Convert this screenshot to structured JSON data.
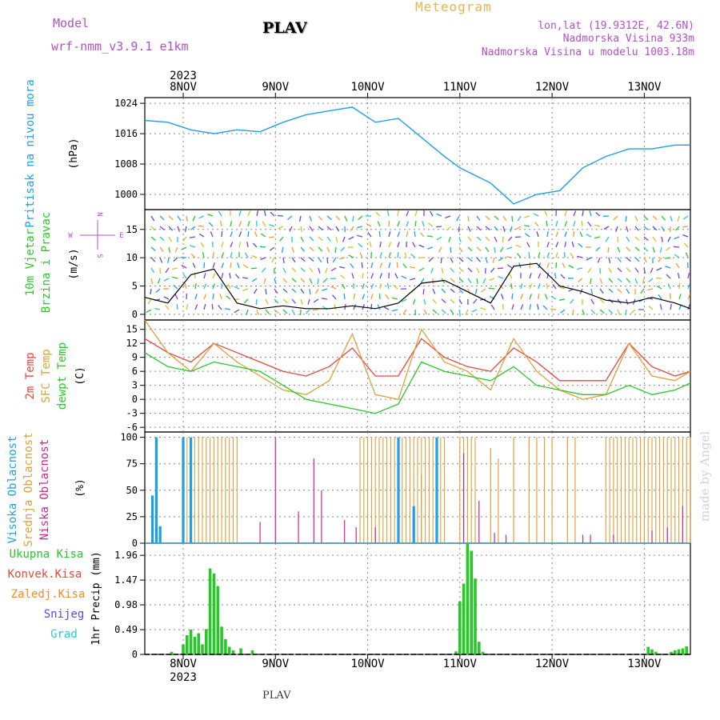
{
  "header": {
    "model_label": "Model",
    "model_name": "wrf-nmm_v3.9.1  e1km",
    "station_title": "PLAV",
    "meteogram_label": "Meteogram",
    "lonlat": "lon,lat (19.9312E, 42.6N)",
    "elevation": "Nadmorska Visina 933m",
    "model_elevation": "Nadmorska Visina u modelu 1003.18m"
  },
  "watermark": "made by Angel",
  "footer_station": "PLAV",
  "colors": {
    "pressure": "#1ea0e6",
    "temp2m": "#e6463c",
    "sfc_temp": "#dca03c",
    "dewpoint": "#28c828",
    "high_cloud": "#1ea0e6",
    "mid_cloud": "#dca03c",
    "low_cloud": "#c8288c",
    "total_precip": "#28c828",
    "conv_precip": "#e6463c",
    "frozen_precip": "#f08c28",
    "snow": "#5050dc",
    "graupel": "#28c8c8",
    "magenta_text": "#b450c8",
    "wind_label": "#28c828",
    "wind_speed_line": "#000000",
    "gust": "#e6463c"
  },
  "chart_data": {
    "type": "meteogram",
    "x_range": [
      "2023-11-07 14:00",
      "2023-11-13 12:00"
    ],
    "year_label": "2023",
    "day_labels": [
      "8NOV",
      "9NOV",
      "10NOV",
      "11NOV",
      "12NOV",
      "13NOV"
    ],
    "days": [
      "2023-11-08",
      "2023-11-09",
      "2023-11-10",
      "2023-11-11",
      "2023-11-12",
      "2023-11-13"
    ],
    "panels": [
      {
        "id": "pressure",
        "ylabel_title": "Pritisak na nivou mora",
        "unit": "(hPa)",
        "ylim": [
          996,
          1025.5
        ],
        "ticks": [
          "1000",
          "1008",
          "1016",
          "1024"
        ],
        "series": [
          {
            "name": "Pritisak na nivou mora",
            "x": [
              "2023-11-07 14:00",
              "2023-11-07 20:00",
              "2023-11-08 02:00",
              "2023-11-08 08:00",
              "2023-11-08 14:00",
              "2023-11-08 20:00",
              "2023-11-09 02:00",
              "2023-11-09 08:00",
              "2023-11-09 14:00",
              "2023-11-09 20:00",
              "2023-11-10 02:00",
              "2023-11-10 08:00",
              "2023-11-10 14:00",
              "2023-11-10 20:00",
              "2023-11-11 00:00",
              "2023-11-11 04:00",
              "2023-11-11 08:00",
              "2023-11-11 14:00",
              "2023-11-11 20:00",
              "2023-11-12 02:00",
              "2023-11-12 08:00",
              "2023-11-12 14:00",
              "2023-11-12 20:00",
              "2023-11-13 02:00",
              "2023-11-13 08:00",
              "2023-11-13 12:00"
            ],
            "y": [
              1019.5,
              1019,
              1017,
              1016,
              1017,
              1016.5,
              1019,
              1021,
              1022,
              1023,
              1019,
              1020,
              1015,
              1010,
              1007,
              1005,
              1003,
              997.5,
              1000,
              1001,
              1007,
              1010,
              1012,
              1012,
              1013,
              1013
            ]
          }
        ]
      },
      {
        "id": "wind",
        "ylabel_title": "10m Vjetar",
        "ylabel_title2": "Brzina i Pravac",
        "unit": "(m/s)",
        "ylim": [
          -1,
          18.5
        ],
        "ticks": [
          "0",
          "5",
          "10",
          "15"
        ],
        "compass": [
          "N",
          "E",
          "S",
          "W"
        ],
        "series": [
          {
            "name": "Brzina vjetra",
            "x": [
              "2023-11-07 14:00",
              "2023-11-07 20:00",
              "2023-11-08 02:00",
              "2023-11-08 08:00",
              "2023-11-08 14:00",
              "2023-11-08 20:00",
              "2023-11-09 02:00",
              "2023-11-09 08:00",
              "2023-11-09 14:00",
              "2023-11-09 20:00",
              "2023-11-10 02:00",
              "2023-11-10 08:00",
              "2023-11-10 14:00",
              "2023-11-10 20:00",
              "2023-11-11 02:00",
              "2023-11-11 08:00",
              "2023-11-11 14:00",
              "2023-11-11 20:00",
              "2023-11-12 02:00",
              "2023-11-12 08:00",
              "2023-11-12 14:00",
              "2023-11-12 20:00",
              "2023-11-13 02:00",
              "2023-11-13 08:00",
              "2023-11-13 12:00"
            ],
            "y": [
              3,
              2,
              7,
              8,
              2,
              1,
              1.5,
              1,
              1,
              1.5,
              1,
              2,
              5.5,
              6,
              4,
              2,
              8.5,
              9,
              5,
              4,
              2.5,
              2,
              3,
              2,
              1
            ]
          }
        ]
      },
      {
        "id": "temperature",
        "ylabel_title": "2m Temp",
        "ylabel_title2": "SFC Temp",
        "ylabel_title3": "dewpt Temp",
        "unit": "(C)",
        "ylim": [
          -7,
          17
        ],
        "ticks": [
          "-6",
          "-3",
          "0",
          "3",
          "6",
          "9",
          "12",
          "15"
        ],
        "x": [
          "2023-11-07 14:00",
          "2023-11-07 20:00",
          "2023-11-08 02:00",
          "2023-11-08 08:00",
          "2023-11-08 14:00",
          "2023-11-08 20:00",
          "2023-11-09 02:00",
          "2023-11-09 08:00",
          "2023-11-09 14:00",
          "2023-11-09 20:00",
          "2023-11-10 02:00",
          "2023-11-10 08:00",
          "2023-11-10 14:00",
          "2023-11-10 20:00",
          "2023-11-11 02:00",
          "2023-11-11 08:00",
          "2023-11-11 14:00",
          "2023-11-11 20:00",
          "2023-11-12 02:00",
          "2023-11-12 08:00",
          "2023-11-12 14:00",
          "2023-11-12 20:00",
          "2023-11-13 02:00",
          "2023-11-13 08:00",
          "2023-11-13 12:00"
        ],
        "series": [
          {
            "name": "2m Temp",
            "values": [
              13,
              10,
              8,
              12,
              10,
              8,
              6,
              5,
              7,
              11,
              5,
              5,
              13,
              9,
              7,
              6,
              11,
              8,
              4,
              4,
              4,
              12,
              7,
              5,
              6
            ]
          },
          {
            "name": "SFC Temp",
            "values": [
              17,
              10,
              6,
              12,
              8,
              5,
              2,
              1,
              4,
              14,
              1,
              0,
              15,
              8,
              6,
              2,
              13,
              6,
              2,
              0,
              1,
              12,
              5,
              4,
              6
            ]
          },
          {
            "name": "dewpt Temp",
            "values": [
              10,
              7,
              6,
              8,
              7,
              6,
              3,
              0,
              -1,
              -2,
              -3,
              -1,
              8,
              6,
              5,
              4,
              7,
              3,
              2,
              1,
              1,
              3,
              1,
              2,
              3.5
            ]
          }
        ]
      },
      {
        "id": "clouds",
        "ylabel_title": "Visoka Oblacnost",
        "ylabel_title2": "Srednja Oblacnost",
        "ylabel_title3": "Niska Oblacnost",
        "unit": "(%)",
        "ylim": [
          0,
          105
        ],
        "ticks": [
          "0",
          "25",
          "50",
          "75",
          "100"
        ],
        "series": [
          {
            "name": "Visoka Oblacnost",
            "bars": [
              [
                "2023-11-07 16:00",
                45
              ],
              [
                "2023-11-07 17:00",
                100
              ],
              [
                "2023-11-07 18:00",
                16
              ],
              [
                "2023-11-08 00:00",
                100
              ],
              [
                "2023-11-08 02:00",
                100
              ],
              [
                "2023-11-10 08:00",
                100
              ],
              [
                "2023-11-10 12:00",
                35
              ],
              [
                "2023-11-10 18:00",
                100
              ]
            ]
          },
          {
            "name": "Srednja Oblacnost",
            "ranges": [
              [
                "2023-11-08 00:00",
                "2023-11-08 14:00",
                100
              ],
              [
                "2023-11-09 22:00",
                "2023-11-10 20:00",
                100
              ],
              [
                "2023-11-11 00:00",
                "2023-11-11 04:00",
                100
              ],
              [
                "2023-11-12 14:00",
                "2023-11-13 12:00",
                100
              ]
            ],
            "bars": [
              [
                "2023-11-10 14:00",
                65
              ],
              [
                "2023-11-11 08:00",
                90
              ],
              [
                "2023-11-11 10:00",
                80
              ],
              [
                "2023-11-11 14:00",
                100
              ],
              [
                "2023-11-11 18:00",
                100
              ],
              [
                "2023-11-11 20:00",
                100
              ],
              [
                "2023-11-11 22:00",
                100
              ],
              [
                "2023-11-12 00:00",
                100
              ],
              [
                "2023-11-12 04:00",
                100
              ],
              [
                "2023-11-12 06:00",
                100
              ]
            ]
          },
          {
            "name": "Niska Oblacnost",
            "bars": [
              [
                "2023-11-08 20:00",
                20
              ],
              [
                "2023-11-09 00:00",
                100
              ],
              [
                "2023-11-09 06:00",
                30
              ],
              [
                "2023-11-09 10:00",
                80
              ],
              [
                "2023-11-09 12:00",
                50
              ],
              [
                "2023-11-09 18:00",
                22
              ],
              [
                "2023-11-09 21:00",
                15
              ],
              [
                "2023-11-10 02:00",
                15
              ],
              [
                "2023-11-11 01:00",
                85
              ],
              [
                "2023-11-11 05:00",
                40
              ],
              [
                "2023-11-11 09:00",
                10
              ],
              [
                "2023-11-11 12:00",
                8
              ],
              [
                "2023-11-12 08:00",
                8
              ],
              [
                "2023-11-12 10:00",
                8
              ],
              [
                "2023-11-12 16:00",
                8
              ],
              [
                "2023-11-13 02:00",
                12
              ],
              [
                "2023-11-13 06:00",
                15
              ],
              [
                "2023-11-13 10:00",
                35
              ]
            ]
          }
        ]
      },
      {
        "id": "precip",
        "legend": [
          "Ukupna Kisa",
          "Konvek.Kisa",
          "Zaledj.Kisa",
          "Snijeg",
          "Grad"
        ],
        "unit": "1hr Precip (mm)",
        "ylim": [
          0,
          2.2
        ],
        "ticks": [
          "0",
          "0.49",
          "0.98",
          "1.47",
          "1.96"
        ],
        "series": [
          {
            "name": "Ukupna Kisa",
            "bars": [
              [
                "2023-11-07 21:00",
                0.05
              ],
              [
                "2023-11-08 00:00",
                0.2
              ],
              [
                "2023-11-08 01:00",
                0.38
              ],
              [
                "2023-11-08 02:00",
                0.49
              ],
              [
                "2023-11-08 03:00",
                0.35
              ],
              [
                "2023-11-08 04:00",
                0.42
              ],
              [
                "2023-11-08 05:00",
                0.2
              ],
              [
                "2023-11-08 06:00",
                0.5
              ],
              [
                "2023-11-08 07:00",
                1.7
              ],
              [
                "2023-11-08 08:00",
                1.6
              ],
              [
                "2023-11-08 09:00",
                1.35
              ],
              [
                "2023-11-08 10:00",
                0.55
              ],
              [
                "2023-11-08 11:00",
                0.3
              ],
              [
                "2023-11-08 12:00",
                0.15
              ],
              [
                "2023-11-08 13:00",
                0.08
              ],
              [
                "2023-11-08 15:00",
                0.12
              ],
              [
                "2023-11-08 18:00",
                0.08
              ],
              [
                "2023-11-10 23:00",
                0.06
              ],
              [
                "2023-11-11 00:00",
                1.05
              ],
              [
                "2023-11-11 01:00",
                1.4
              ],
              [
                "2023-11-11 02:00",
                2.2
              ],
              [
                "2023-11-11 03:00",
                2.05
              ],
              [
                "2023-11-11 04:00",
                1.5
              ],
              [
                "2023-11-11 05:00",
                0.25
              ],
              [
                "2023-11-11 06:00",
                0.05
              ],
              [
                "2023-11-13 01:00",
                0.15
              ],
              [
                "2023-11-13 02:00",
                0.1
              ],
              [
                "2023-11-13 03:00",
                0.05
              ],
              [
                "2023-11-13 07:00",
                0.05
              ],
              [
                "2023-11-13 08:00",
                0.08
              ],
              [
                "2023-11-13 09:00",
                0.1
              ],
              [
                "2023-11-13 10:00",
                0.12
              ],
              [
                "2023-11-13 11:00",
                0.16
              ]
            ]
          }
        ]
      }
    ]
  }
}
